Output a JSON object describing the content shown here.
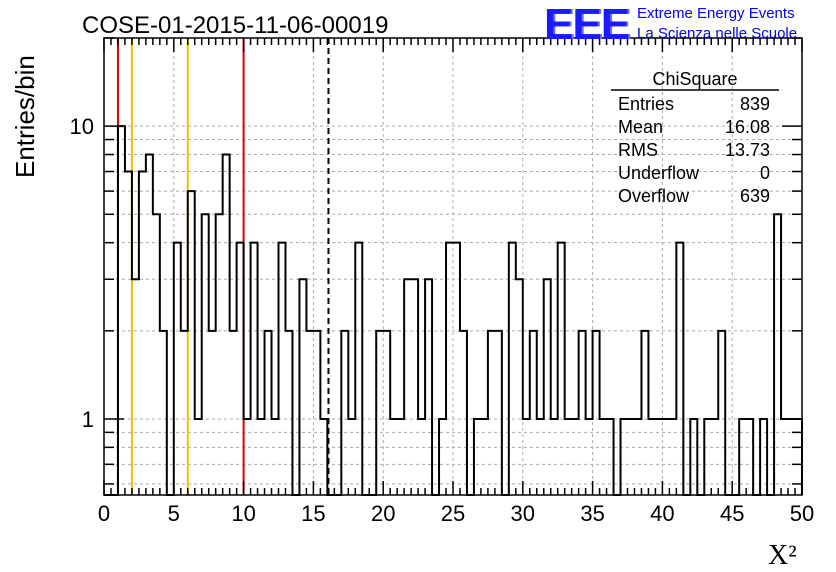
{
  "title": "COSE-01-2015-11-06-00019",
  "logo": {
    "mark": "EEE",
    "line1": "Extreme Energy Events",
    "line2": "La Scienza nelle Scuole"
  },
  "stats": {
    "name": "ChiSquare",
    "rows": [
      {
        "label": "Entries",
        "value": "839"
      },
      {
        "label": "Mean",
        "value": "16.08"
      },
      {
        "label": "RMS",
        "value": "13.73"
      },
      {
        "label": "Underflow",
        "value": "0"
      },
      {
        "label": "Overflow",
        "value": "639"
      }
    ]
  },
  "colors": {
    "histogram": "#000000",
    "red_lines": "#dd0000",
    "yellow_lines": "#f0c000",
    "grid": "#aaaaaa",
    "logo": "#1a1aff"
  },
  "chart_data": {
    "type": "bar",
    "histogram": true,
    "xlabel": "X²",
    "ylabel": "Entries/bin",
    "xlim": [
      0,
      50
    ],
    "ylim": [
      0.55,
      20
    ],
    "yscale": "log",
    "grid": true,
    "x_ticks": [
      "0",
      "5",
      "10",
      "15",
      "20",
      "25",
      "30",
      "35",
      "40",
      "45",
      "50"
    ],
    "y_ticks": [
      "1",
      "10"
    ],
    "bin_width": 0.5,
    "bin_edges_start": 0,
    "bin_contents": [
      0,
      0,
      10,
      7,
      3,
      7,
      8,
      5,
      2,
      0,
      4,
      2,
      6,
      1,
      5,
      2,
      5,
      8,
      2,
      4,
      1,
      4,
      1,
      2,
      1,
      4,
      2,
      0,
      3,
      2,
      2,
      1,
      0,
      0,
      2,
      1,
      4,
      0,
      0,
      2,
      2,
      1,
      1,
      3,
      3,
      1,
      3,
      0,
      1,
      4,
      4,
      2,
      0,
      1,
      1,
      2,
      2,
      0,
      4,
      3,
      1,
      2,
      1,
      3,
      1,
      4,
      1,
      1,
      2,
      1,
      2,
      1,
      1,
      0,
      1,
      1,
      1,
      2,
      1,
      1,
      1,
      1,
      4,
      0,
      1,
      0,
      1,
      1,
      2,
      0,
      0,
      1,
      1,
      0,
      1,
      0,
      5,
      1,
      1,
      1
    ],
    "reference_lines": [
      {
        "x": 1,
        "color": "red",
        "style": "solid"
      },
      {
        "x": 2,
        "color": "yellow",
        "style": "solid"
      },
      {
        "x": 6,
        "color": "yellow",
        "style": "solid"
      },
      {
        "x": 10,
        "color": "red",
        "style": "solid"
      },
      {
        "x": 16.08,
        "color": "black",
        "style": "dashed"
      }
    ]
  }
}
